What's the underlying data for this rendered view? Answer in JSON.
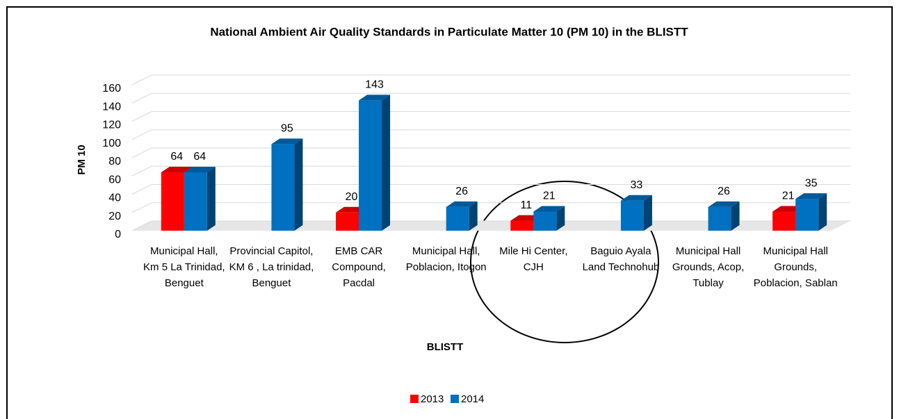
{
  "chart_data": {
    "type": "bar3d",
    "title": "National Ambient Air Quality Standards in Particulate Matter 10 (PM 10) in the BLISTT",
    "xlabel": "BLISTT",
    "ylabel": "PM 10",
    "categories": [
      "Municipal Hall, Km 5 La Trinidad, Benguet",
      "Provincial Capitol, KM 6 , La trinidad, Benguet",
      "EMB CAR Compound, Pacdal",
      "Municipal Hall, Poblacion, Itogon",
      "Mile Hi Center, CJH",
      "Baguio Ayala Land Technohub",
      "Municipal Hall Grounds, Acop, Tublay",
      "Municipal Hall Grounds, Poblacion, Sablan"
    ],
    "series": [
      {
        "name": "2013",
        "color": "#ff0000",
        "values": [
          64,
          null,
          20,
          null,
          11,
          null,
          null,
          21
        ]
      },
      {
        "name": "2014",
        "color": "#0070c0",
        "values": [
          64,
          95,
          143,
          26,
          21,
          33,
          26,
          35
        ]
      }
    ],
    "ylim": [
      0,
      160
    ],
    "yticks": [
      0,
      20,
      40,
      60,
      80,
      100,
      120,
      140,
      160
    ],
    "grid": true,
    "legend": "bottom"
  }
}
